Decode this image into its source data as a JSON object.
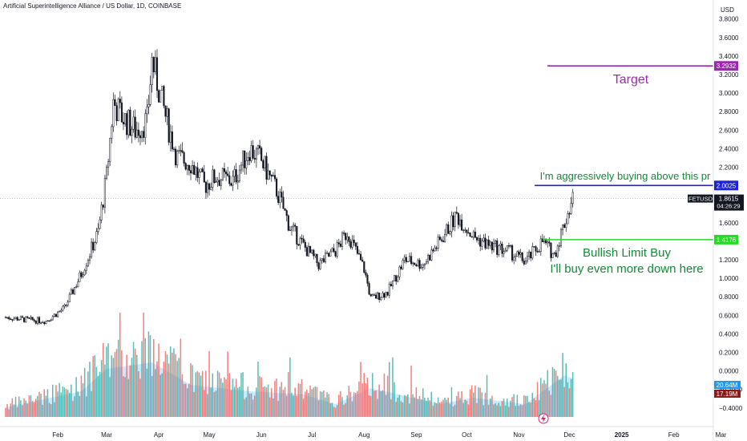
{
  "header": {
    "title": "Artificial Superintelligence Alliance / US Dollar, 1D, COINBASE"
  },
  "colors": {
    "up": "#26a69a",
    "down": "#ef5350",
    "candle": "#131722",
    "target": "#9c27b0",
    "buy_line": "#1e22d6",
    "limit": "#22dd22",
    "note_green": "#138a36",
    "vol_ma": "#90caf9",
    "current": "#131722"
  },
  "chart_data": {
    "type": "candlestick",
    "symbol": "FETUSD",
    "yaxis_unit": "USD",
    "ylim": [
      -0.5,
      3.85
    ],
    "yticks": [
      "3.8000",
      "3.6000",
      "3.4000",
      "3.2000",
      "3.0000",
      "2.8000",
      "2.6000",
      "2.4000",
      "2.2000",
      "2.0000",
      "1.8000",
      "1.6000",
      "1.4000",
      "1.2000",
      "1.0000",
      "0.8000",
      "0.6000",
      "0.4000",
      "0.2000",
      "0.0000",
      "−0.2000",
      "−0.4000"
    ],
    "xticks": [
      "Feb",
      "Mar",
      "Apr",
      "May",
      "Jun",
      "Jul",
      "Aug",
      "Sep",
      "Oct",
      "Nov",
      "Dec",
      "2025",
      "Feb",
      "Mar"
    ],
    "close_path": [
      [
        "2024-01-01",
        0.58
      ],
      [
        "2024-01-15",
        0.55
      ],
      [
        "2024-01-25",
        0.54
      ],
      [
        "2024-02-05",
        0.68
      ],
      [
        "2024-02-15",
        1.05
      ],
      [
        "2024-02-25",
        1.5
      ],
      [
        "2024-03-01",
        2.1
      ],
      [
        "2024-03-05",
        2.9
      ],
      [
        "2024-03-10",
        2.75
      ],
      [
        "2024-03-18",
        2.6
      ],
      [
        "2024-03-25",
        2.7
      ],
      [
        "2024-03-28",
        3.35
      ],
      [
        "2024-04-05",
        2.75
      ],
      [
        "2024-04-12",
        2.3
      ],
      [
        "2024-04-20",
        2.25
      ],
      [
        "2024-04-28",
        2.0
      ],
      [
        "2024-05-05",
        2.1
      ],
      [
        "2024-05-15",
        2.05
      ],
      [
        "2024-05-25",
        2.4
      ],
      [
        "2024-05-31",
        2.3
      ],
      [
        "2024-06-10",
        1.95
      ],
      [
        "2024-06-18",
        1.55
      ],
      [
        "2024-06-26",
        1.35
      ],
      [
        "2024-07-05",
        1.15
      ],
      [
        "2024-07-15",
        1.3
      ],
      [
        "2024-07-22",
        1.5
      ],
      [
        "2024-08-01",
        1.1
      ],
      [
        "2024-08-05",
        0.78
      ],
      [
        "2024-08-15",
        0.85
      ],
      [
        "2024-08-25",
        1.2
      ],
      [
        "2024-09-05",
        1.15
      ],
      [
        "2024-09-15",
        1.4
      ],
      [
        "2024-09-25",
        1.68
      ],
      [
        "2024-10-05",
        1.45
      ],
      [
        "2024-10-15",
        1.35
      ],
      [
        "2024-10-25",
        1.3
      ],
      [
        "2024-11-05",
        1.18
      ],
      [
        "2024-11-15",
        1.4
      ],
      [
        "2024-11-22",
        1.25
      ],
      [
        "2024-11-28",
        1.6
      ],
      [
        "2024-12-03",
        1.86
      ]
    ],
    "volume_path": [
      [
        "2024-01-01",
        0.15
      ],
      [
        "2024-02-15",
        0.4
      ],
      [
        "2024-03-01",
        0.75
      ],
      [
        "2024-03-28",
        0.85
      ],
      [
        "2024-04-20",
        0.5
      ],
      [
        "2024-05-25",
        0.4
      ],
      [
        "2024-06-26",
        0.35
      ],
      [
        "2024-07-15",
        0.2
      ],
      [
        "2024-08-05",
        0.45
      ],
      [
        "2024-09-15",
        0.2
      ],
      [
        "2024-10-05",
        0.3
      ],
      [
        "2024-11-05",
        0.2
      ],
      [
        "2024-11-28",
        0.65
      ],
      [
        "2024-12-03",
        0.6
      ]
    ],
    "levels": [
      {
        "name": "target",
        "value": 3.2932,
        "label": "3.2932",
        "text": "Target"
      },
      {
        "name": "aggressive-buy",
        "value": 2.0025,
        "label": "2.0025",
        "text": "I'm aggressively buying above this pr"
      },
      {
        "name": "limit-buy",
        "value": 1.4176,
        "label": "1.4176",
        "text": "Bullish Limit Buy",
        "text2": "I'll buy even more down here"
      }
    ],
    "current": {
      "value": 1.8615,
      "symbol": "FETUSD",
      "price": "1.8615",
      "countdown": "04:26:29"
    },
    "volume_labels": [
      {
        "name": "volume-ma",
        "value": "20.64M",
        "color": "#2196f3"
      },
      {
        "name": "volume",
        "value": "17.19M",
        "color": "#8b1a1a"
      }
    ]
  }
}
